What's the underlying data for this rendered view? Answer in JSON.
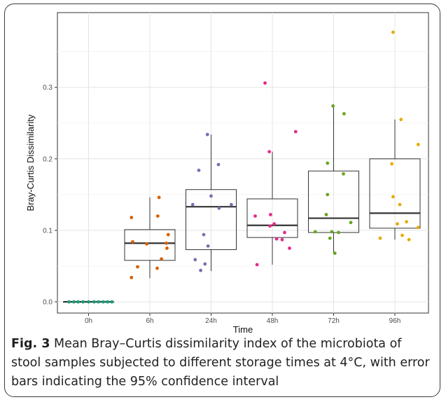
{
  "figure": {
    "label": "Fig. 3",
    "caption": "Mean Bray–Curtis dissimilarity index of the microbiota of stool samples subjected to different storage times at 4°C, with error bars indicating the 95% confidence interval"
  },
  "chart_data": {
    "type": "box",
    "xlabel": "Time",
    "ylabel": "Bray-Curtis Dissimilarity",
    "categories": [
      "0h",
      "6h",
      "24h",
      "48h",
      "72h",
      "96h"
    ],
    "yticks": [
      0.0,
      0.1,
      0.2,
      0.3
    ],
    "ytick_labels": [
      "0.0",
      "0.1",
      "0.2",
      "0.3"
    ],
    "ylim": [
      -0.015,
      0.38
    ],
    "grid": true,
    "colors": [
      "#1b9e77",
      "#d95f02",
      "#7570b3",
      "#e7298a",
      "#66a61e",
      "#e6ab02"
    ],
    "boxes": [
      {
        "category": "0h",
        "min": 0.0,
        "q1": 0.0,
        "median": 0.0,
        "q3": 0.0,
        "max": 0.0
      },
      {
        "category": "6h",
        "min": 0.033,
        "q1": 0.058,
        "median": 0.082,
        "q3": 0.101,
        "max": 0.146
      },
      {
        "category": "24h",
        "min": 0.043,
        "q1": 0.073,
        "median": 0.133,
        "q3": 0.157,
        "max": 0.234
      },
      {
        "category": "48h",
        "min": 0.052,
        "q1": 0.09,
        "median": 0.107,
        "q3": 0.144,
        "max": 0.21
      },
      {
        "category": "72h",
        "min": 0.068,
        "q1": 0.097,
        "median": 0.117,
        "q3": 0.183,
        "max": 0.274
      },
      {
        "category": "96h",
        "min": 0.087,
        "q1": 0.103,
        "median": 0.124,
        "q3": 0.2,
        "max": 0.255
      }
    ],
    "points": [
      {
        "category": "0h",
        "values": [
          0,
          0,
          0,
          0,
          0,
          0,
          0,
          0,
          0,
          0
        ],
        "offsets": [
          -0.32,
          -0.24,
          -0.17,
          -0.09,
          0.0,
          0.09,
          0.16,
          0.24,
          0.31,
          0.38
        ]
      },
      {
        "category": "6h",
        "values": [
          0.118,
          0.084,
          0.081,
          0.049,
          0.034,
          0.146,
          0.12,
          0.094,
          0.082,
          0.075,
          0.06,
          0.047
        ],
        "offsets": [
          -0.3,
          -0.28,
          -0.05,
          -0.2,
          -0.3,
          0.15,
          0.13,
          0.3,
          0.27,
          0.28,
          0.19,
          0.12
        ]
      },
      {
        "category": "24h",
        "values": [
          0.234,
          0.192,
          0.184,
          0.148,
          0.136,
          0.131,
          0.094,
          0.078,
          0.059,
          0.053,
          0.044,
          0.136
        ],
        "offsets": [
          -0.06,
          0.12,
          -0.2,
          0.0,
          -0.3,
          0.13,
          -0.12,
          -0.05,
          -0.26,
          -0.1,
          -0.17,
          0.33
        ]
      },
      {
        "category": "48h",
        "values": [
          0.306,
          0.238,
          0.21,
          0.122,
          0.12,
          0.109,
          0.106,
          0.097,
          0.088,
          0.087,
          0.075,
          0.052
        ],
        "offsets": [
          -0.12,
          0.38,
          -0.05,
          -0.03,
          -0.28,
          0.03,
          -0.04,
          0.2,
          0.07,
          0.16,
          0.28,
          -0.25
        ]
      },
      {
        "category": "72h",
        "values": [
          0.274,
          0.263,
          0.194,
          0.179,
          0.15,
          0.122,
          0.111,
          0.098,
          0.098,
          0.097,
          0.089,
          0.068
        ],
        "offsets": [
          -0.01,
          0.17,
          -0.1,
          0.16,
          -0.1,
          -0.12,
          0.28,
          -0.3,
          -0.03,
          0.08,
          -0.06,
          0.02
        ]
      },
      {
        "category": "96h",
        "values": [
          0.377,
          0.255,
          0.22,
          0.193,
          0.147,
          0.136,
          0.112,
          0.109,
          0.104,
          0.093,
          0.089,
          0.087
        ],
        "offsets": [
          -0.03,
          0.1,
          0.38,
          -0.05,
          -0.03,
          0.08,
          0.19,
          0.04,
          0.38,
          0.12,
          -0.24,
          0.23
        ]
      }
    ]
  }
}
